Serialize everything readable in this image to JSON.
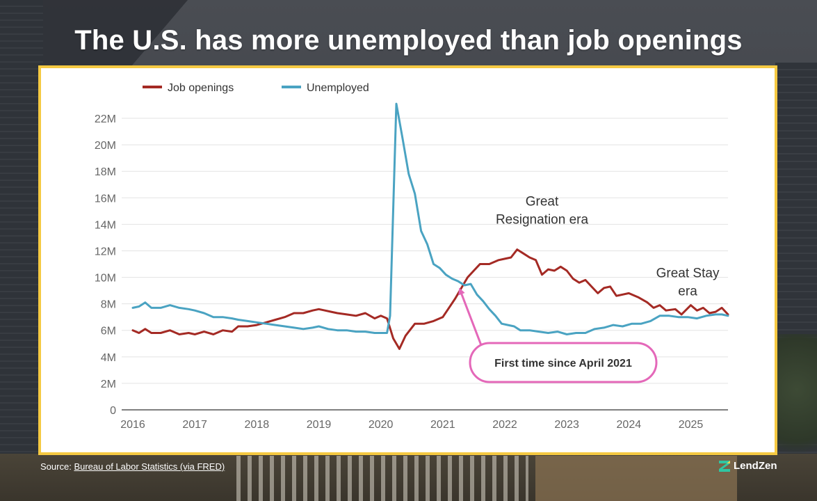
{
  "title": "The U.S. has more unemployed than job openings",
  "source": {
    "prefix": "Source:",
    "link": "Bureau of Labor Statistics (via FRED)"
  },
  "brand": {
    "name": "LendZen"
  },
  "colors": {
    "job_openings": "#a42a24",
    "unemployed": "#4aa3c2",
    "frame": "#f5c942",
    "callout": "#e468b9"
  },
  "chart_data": {
    "type": "line",
    "xlim": [
      2016,
      2025.6
    ],
    "ylim": [
      0,
      23
    ],
    "yticks": [
      {
        "value": 0,
        "label": "0"
      },
      {
        "value": 2,
        "label": "2M"
      },
      {
        "value": 4,
        "label": "4M"
      },
      {
        "value": 6,
        "label": "6M"
      },
      {
        "value": 8,
        "label": "8M"
      },
      {
        "value": 10,
        "label": "10M"
      },
      {
        "value": 12,
        "label": "12M"
      },
      {
        "value": 14,
        "label": "14M"
      },
      {
        "value": 16,
        "label": "16M"
      },
      {
        "value": 18,
        "label": "18M"
      },
      {
        "value": 20,
        "label": "20M"
      },
      {
        "value": 22,
        "label": "22M"
      }
    ],
    "xticks": [
      {
        "value": 2016,
        "label": "2016"
      },
      {
        "value": 2017,
        "label": "2017"
      },
      {
        "value": 2018,
        "label": "2018"
      },
      {
        "value": 2019,
        "label": "2019"
      },
      {
        "value": 2020,
        "label": "2020"
      },
      {
        "value": 2021,
        "label": "2021"
      },
      {
        "value": 2022,
        "label": "2022"
      },
      {
        "value": 2023,
        "label": "2023"
      },
      {
        "value": 2024,
        "label": "2024"
      },
      {
        "value": 2025,
        "label": "2025"
      }
    ],
    "legend_position": "top-left",
    "grid": true,
    "series": [
      {
        "name": "Job openings",
        "color": "#a42a24",
        "points": [
          [
            2016.0,
            6.0
          ],
          [
            2016.1,
            5.8
          ],
          [
            2016.2,
            6.1
          ],
          [
            2016.3,
            5.8
          ],
          [
            2016.45,
            5.8
          ],
          [
            2016.6,
            6.0
          ],
          [
            2016.75,
            5.7
          ],
          [
            2016.9,
            5.8
          ],
          [
            2017.0,
            5.7
          ],
          [
            2017.15,
            5.9
          ],
          [
            2017.3,
            5.7
          ],
          [
            2017.45,
            6.0
          ],
          [
            2017.6,
            5.9
          ],
          [
            2017.7,
            6.3
          ],
          [
            2017.85,
            6.3
          ],
          [
            2018.0,
            6.4
          ],
          [
            2018.15,
            6.6
          ],
          [
            2018.3,
            6.8
          ],
          [
            2018.45,
            7.0
          ],
          [
            2018.6,
            7.3
          ],
          [
            2018.75,
            7.3
          ],
          [
            2018.9,
            7.5
          ],
          [
            2019.0,
            7.6
          ],
          [
            2019.1,
            7.5
          ],
          [
            2019.2,
            7.4
          ],
          [
            2019.3,
            7.3
          ],
          [
            2019.45,
            7.2
          ],
          [
            2019.6,
            7.1
          ],
          [
            2019.75,
            7.3
          ],
          [
            2019.9,
            6.9
          ],
          [
            2020.0,
            7.1
          ],
          [
            2020.1,
            6.9
          ],
          [
            2020.2,
            5.4
          ],
          [
            2020.3,
            4.6
          ],
          [
            2020.4,
            5.6
          ],
          [
            2020.55,
            6.5
          ],
          [
            2020.7,
            6.5
          ],
          [
            2020.85,
            6.7
          ],
          [
            2021.0,
            7.0
          ],
          [
            2021.1,
            7.7
          ],
          [
            2021.2,
            8.4
          ],
          [
            2021.3,
            9.2
          ],
          [
            2021.4,
            10.0
          ],
          [
            2021.5,
            10.5
          ],
          [
            2021.6,
            11.0
          ],
          [
            2021.75,
            11.0
          ],
          [
            2021.9,
            11.3
          ],
          [
            2022.0,
            11.4
          ],
          [
            2022.1,
            11.5
          ],
          [
            2022.2,
            12.1
          ],
          [
            2022.3,
            11.8
          ],
          [
            2022.4,
            11.5
          ],
          [
            2022.5,
            11.3
          ],
          [
            2022.6,
            10.2
          ],
          [
            2022.7,
            10.6
          ],
          [
            2022.8,
            10.5
          ],
          [
            2022.9,
            10.8
          ],
          [
            2023.0,
            10.5
          ],
          [
            2023.1,
            9.9
          ],
          [
            2023.2,
            9.6
          ],
          [
            2023.3,
            9.8
          ],
          [
            2023.4,
            9.3
          ],
          [
            2023.5,
            8.8
          ],
          [
            2023.6,
            9.2
          ],
          [
            2023.7,
            9.3
          ],
          [
            2023.8,
            8.6
          ],
          [
            2023.9,
            8.7
          ],
          [
            2024.0,
            8.8
          ],
          [
            2024.15,
            8.5
          ],
          [
            2024.3,
            8.1
          ],
          [
            2024.4,
            7.7
          ],
          [
            2024.5,
            7.9
          ],
          [
            2024.6,
            7.5
          ],
          [
            2024.75,
            7.6
          ],
          [
            2024.85,
            7.2
          ],
          [
            2025.0,
            7.9
          ],
          [
            2025.1,
            7.5
          ],
          [
            2025.2,
            7.7
          ],
          [
            2025.3,
            7.3
          ],
          [
            2025.4,
            7.4
          ],
          [
            2025.5,
            7.7
          ],
          [
            2025.6,
            7.2
          ]
        ]
      },
      {
        "name": "Unemployed",
        "color": "#4aa3c2",
        "points": [
          [
            2016.0,
            7.7
          ],
          [
            2016.1,
            7.8
          ],
          [
            2016.2,
            8.1
          ],
          [
            2016.3,
            7.7
          ],
          [
            2016.45,
            7.7
          ],
          [
            2016.6,
            7.9
          ],
          [
            2016.75,
            7.7
          ],
          [
            2016.9,
            7.6
          ],
          [
            2017.0,
            7.5
          ],
          [
            2017.15,
            7.3
          ],
          [
            2017.3,
            7.0
          ],
          [
            2017.45,
            7.0
          ],
          [
            2017.6,
            6.9
          ],
          [
            2017.7,
            6.8
          ],
          [
            2017.85,
            6.7
          ],
          [
            2018.0,
            6.6
          ],
          [
            2018.15,
            6.5
          ],
          [
            2018.3,
            6.4
          ],
          [
            2018.45,
            6.3
          ],
          [
            2018.6,
            6.2
          ],
          [
            2018.75,
            6.1
          ],
          [
            2018.9,
            6.2
          ],
          [
            2019.0,
            6.3
          ],
          [
            2019.15,
            6.1
          ],
          [
            2019.3,
            6.0
          ],
          [
            2019.45,
            6.0
          ],
          [
            2019.6,
            5.9
          ],
          [
            2019.75,
            5.9
          ],
          [
            2019.9,
            5.8
          ],
          [
            2020.0,
            5.8
          ],
          [
            2020.1,
            5.8
          ],
          [
            2020.15,
            7.1
          ],
          [
            2020.25,
            23.1
          ],
          [
            2020.35,
            20.5
          ],
          [
            2020.45,
            17.8
          ],
          [
            2020.55,
            16.3
          ],
          [
            2020.65,
            13.5
          ],
          [
            2020.75,
            12.5
          ],
          [
            2020.85,
            11.0
          ],
          [
            2020.95,
            10.7
          ],
          [
            2021.05,
            10.2
          ],
          [
            2021.15,
            9.9
          ],
          [
            2021.25,
            9.7
          ],
          [
            2021.35,
            9.4
          ],
          [
            2021.45,
            9.5
          ],
          [
            2021.55,
            8.7
          ],
          [
            2021.65,
            8.2
          ],
          [
            2021.75,
            7.6
          ],
          [
            2021.85,
            7.1
          ],
          [
            2021.95,
            6.5
          ],
          [
            2022.05,
            6.4
          ],
          [
            2022.15,
            6.3
          ],
          [
            2022.25,
            6.0
          ],
          [
            2022.4,
            6.0
          ],
          [
            2022.55,
            5.9
          ],
          [
            2022.7,
            5.8
          ],
          [
            2022.85,
            5.9
          ],
          [
            2023.0,
            5.7
          ],
          [
            2023.15,
            5.8
          ],
          [
            2023.3,
            5.8
          ],
          [
            2023.45,
            6.1
          ],
          [
            2023.6,
            6.2
          ],
          [
            2023.75,
            6.4
          ],
          [
            2023.9,
            6.3
          ],
          [
            2024.05,
            6.5
          ],
          [
            2024.2,
            6.5
          ],
          [
            2024.35,
            6.7
          ],
          [
            2024.5,
            7.1
          ],
          [
            2024.65,
            7.1
          ],
          [
            2024.8,
            7.0
          ],
          [
            2024.95,
            7.0
          ],
          [
            2025.1,
            6.9
          ],
          [
            2025.25,
            7.1
          ],
          [
            2025.4,
            7.2
          ],
          [
            2025.5,
            7.2
          ],
          [
            2025.6,
            7.1
          ]
        ]
      }
    ],
    "annotations": [
      {
        "id": "great-resignation",
        "lines": [
          "Great",
          "Resignation era"
        ],
        "x": 2022.6,
        "y": 15.4
      },
      {
        "id": "great-stay",
        "lines": [
          "Great Stay",
          "era"
        ],
        "x": 2024.95,
        "y": 10.0
      }
    ],
    "callout": {
      "text": "First time since April 2021",
      "point": [
        2021.25,
        9.5
      ],
      "anchor": [
        2021.65,
        4.5
      ]
    }
  }
}
